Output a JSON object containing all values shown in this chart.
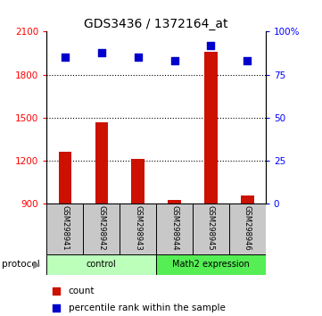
{
  "title": "GDS3436 / 1372164_at",
  "samples": [
    "GSM298941",
    "GSM298942",
    "GSM298943",
    "GSM298944",
    "GSM298945",
    "GSM298946"
  ],
  "counts": [
    1260,
    1470,
    1210,
    930,
    1960,
    960
  ],
  "percentiles": [
    85,
    88,
    85,
    83,
    92,
    83
  ],
  "group_colors": {
    "control": "#bbffbb",
    "Math2 expression": "#55ee55"
  },
  "group_spans": [
    [
      "control",
      0,
      2
    ],
    [
      "Math2 expression",
      3,
      5
    ]
  ],
  "bar_color": "#cc1100",
  "marker_color": "#0000cc",
  "ylim_left": [
    900,
    2100
  ],
  "ylim_right": [
    0,
    100
  ],
  "left_ticks": [
    900,
    1200,
    1500,
    1800,
    2100
  ],
  "right_ticks": [
    0,
    25,
    50,
    75,
    100
  ],
  "right_tick_labels": [
    "0",
    "25",
    "50",
    "75",
    "100%"
  ],
  "grid_values": [
    1200,
    1500,
    1800
  ],
  "legend_count_label": "count",
  "legend_percentile_label": "percentile rank within the sample",
  "protocol_label": "protocol",
  "sample_box_color": "#c8c8c8",
  "bar_width": 0.35
}
